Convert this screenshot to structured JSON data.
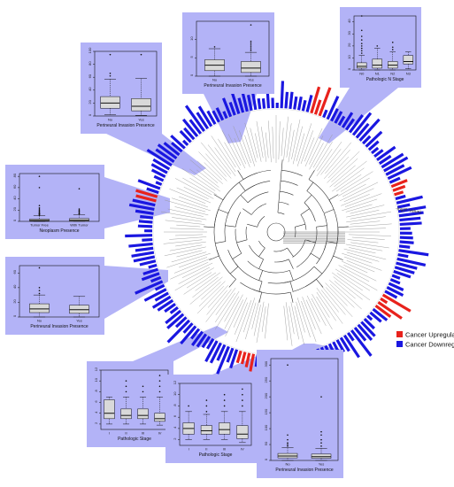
{
  "legend": {
    "up_label": "Cancer Upregulated",
    "down_label": "Cancer Downregulated",
    "up_color": "#e8221c",
    "down_color": "#1a17e0"
  },
  "panel_color": "#b3b3f7",
  "radial_axis_label": "-log(P-Value)",
  "chart_data": [
    {
      "type": "box",
      "panel": "top-left",
      "title": "",
      "xlabel": "Perineural Invasion Presence",
      "categories": [
        "No",
        "Yes"
      ],
      "yticks": [
        0,
        20,
        40,
        60,
        80,
        100
      ],
      "ylim": [
        0,
        100
      ],
      "boxes": [
        {
          "min": 2,
          "q1": 12,
          "median": 20,
          "q3": 30,
          "max": 57,
          "outliers": [
            62,
            66,
            95
          ]
        },
        {
          "min": 1,
          "q1": 8,
          "median": 15,
          "q3": 27,
          "max": 58,
          "outliers": [
            95
          ]
        }
      ]
    },
    {
      "type": "box",
      "panel": "top-center",
      "title": "",
      "xlabel": "Perineural Invasion Presence",
      "categories": [
        "No",
        "Yes"
      ],
      "yticks": [
        0,
        5,
        10
      ],
      "ylim": [
        0,
        15
      ],
      "boxes": [
        {
          "min": 0,
          "q1": 1.5,
          "median": 3,
          "q3": 4.5,
          "max": 7.5,
          "outliers": [
            8
          ]
        },
        {
          "min": 0,
          "q1": 1,
          "median": 2.2,
          "q3": 4,
          "max": 6.5,
          "outliers": [
            7,
            7.5,
            8,
            8.5,
            9,
            9.5,
            14
          ]
        }
      ]
    },
    {
      "type": "box",
      "panel": "top-right",
      "title": "",
      "xlabel": "Pathologic N Stage",
      "categories": [
        "N0",
        "N1",
        "N2",
        "N3"
      ],
      "yticks": [
        0,
        10,
        20,
        30,
        40
      ],
      "ylim": [
        0,
        45
      ],
      "boxes": [
        {
          "min": 0,
          "q1": 1.5,
          "median": 3,
          "q3": 6,
          "max": 12,
          "outliers": [
            14,
            16,
            18,
            20,
            22,
            25,
            28,
            33,
            45
          ]
        },
        {
          "min": 0,
          "q1": 1.5,
          "median": 4,
          "q3": 9,
          "max": 18,
          "outliers": [
            20
          ]
        },
        {
          "min": 0,
          "q1": 1.5,
          "median": 4,
          "q3": 7,
          "max": 15,
          "outliers": [
            17,
            19,
            23
          ]
        },
        {
          "min": 1,
          "q1": 5,
          "median": 7,
          "q3": 12,
          "max": 15,
          "outliers": []
        }
      ]
    },
    {
      "type": "box",
      "panel": "middle-left-upper",
      "title": "",
      "xlabel": "Neoplasm Presence",
      "categories": [
        "Tumor Free",
        "With Tumor"
      ],
      "yticks": [
        0,
        20,
        40,
        60,
        80
      ],
      "ylim": [
        0,
        85
      ],
      "boxes": [
        {
          "min": 0,
          "q1": 0.5,
          "median": 1.5,
          "q3": 4,
          "max": 10,
          "outliers": [
            11,
            12,
            13,
            14,
            15,
            16,
            18,
            20,
            22,
            24,
            28,
            60,
            80
          ]
        },
        {
          "min": 0,
          "q1": 0.5,
          "median": 2,
          "q3": 5,
          "max": 12,
          "outliers": [
            13,
            14,
            16,
            18,
            20,
            22,
            58
          ]
        }
      ]
    },
    {
      "type": "box",
      "panel": "middle-left-lower",
      "title": "",
      "xlabel": "Perineural Invasion Presence",
      "categories": [
        "No",
        "Yes"
      ],
      "yticks": [
        0,
        20,
        40,
        60
      ],
      "ylim": [
        0,
        70
      ],
      "boxes": [
        {
          "min": 0,
          "q1": 6,
          "median": 11,
          "q3": 18,
          "max": 30,
          "outliers": [
            32,
            36,
            40,
            67
          ]
        },
        {
          "min": 0,
          "q1": 5,
          "median": 10,
          "q3": 16,
          "max": 28,
          "outliers": []
        }
      ]
    },
    {
      "type": "box",
      "panel": "bottom-left",
      "title": "",
      "xlabel": "Pathologic Stage",
      "categories": [
        "I",
        "II",
        "III",
        "IV"
      ],
      "yticks": [
        2,
        4,
        6,
        8,
        10,
        12
      ],
      "ylim": [
        1,
        12
      ],
      "boxes": [
        {
          "min": 2,
          "q1": 3,
          "median": 4,
          "q3": 6.5,
          "max": 7,
          "outliers": []
        },
        {
          "min": 2,
          "q1": 3,
          "median": 3.6,
          "q3": 4.8,
          "max": 7,
          "outliers": [
            8,
            9,
            10
          ]
        },
        {
          "min": 2,
          "q1": 3,
          "median": 3.6,
          "q3": 4.8,
          "max": 7,
          "outliers": [
            8,
            9
          ]
        },
        {
          "min": 1.8,
          "q1": 2.5,
          "median": 3,
          "q3": 4,
          "max": 7,
          "outliers": [
            8,
            9,
            10,
            11
          ]
        }
      ]
    },
    {
      "type": "box",
      "panel": "bottom-center",
      "title": "",
      "xlabel": "Pathologic Stage",
      "categories": [
        "I",
        "II",
        "III",
        "IV"
      ],
      "yticks": [
        2,
        4,
        6,
        8,
        10,
        12
      ],
      "ylim": [
        1,
        12
      ],
      "boxes": [
        {
          "min": 2,
          "q1": 3,
          "median": 4,
          "q3": 5,
          "max": 7,
          "outliers": [
            8
          ]
        },
        {
          "min": 2,
          "q1": 3,
          "median": 3.6,
          "q3": 4.5,
          "max": 6.5,
          "outliers": [
            7,
            8,
            9
          ]
        },
        {
          "min": 2,
          "q1": 3,
          "median": 3.8,
          "q3": 5,
          "max": 7,
          "outliers": [
            8,
            9,
            10
          ]
        },
        {
          "min": 1.5,
          "q1": 2.2,
          "median": 3,
          "q3": 4.5,
          "max": 7,
          "outliers": [
            8,
            9,
            10,
            11
          ]
        }
      ]
    },
    {
      "type": "box",
      "panel": "bottom-right",
      "title": "",
      "xlabel": "Perineural Invasion Presence",
      "categories": [
        "No",
        "Yes"
      ],
      "yticks": [
        0,
        50,
        100,
        150,
        200,
        250,
        300
      ],
      "ylim": [
        0,
        320
      ],
      "boxes": [
        {
          "min": 0,
          "q1": 8,
          "median": 14,
          "q3": 22,
          "max": 40,
          "outliers": [
            45,
            50,
            55,
            65,
            80,
            300
          ]
        },
        {
          "min": 0,
          "q1": 7,
          "median": 12,
          "q3": 20,
          "max": 38,
          "outliers": [
            45,
            55,
            65,
            80,
            90,
            200
          ]
        }
      ]
    }
  ]
}
